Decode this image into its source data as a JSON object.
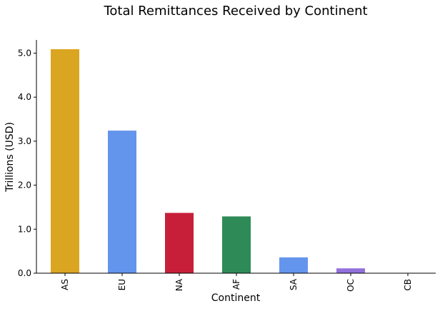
{
  "chart_data": {
    "type": "bar",
    "title": "Total Remittances Received by Continent",
    "xlabel": "Continent",
    "ylabel": "Trillions (USD)",
    "categories": [
      "AS",
      "EU",
      "NA",
      "AF",
      "SA",
      "OC",
      "CB"
    ],
    "values": [
      5.09,
      3.24,
      1.37,
      1.29,
      0.36,
      0.11,
      0.0
    ],
    "colors": [
      "#DAA520",
      "#6495ED",
      "#C71F3A",
      "#2E8B57",
      "#6495ED",
      "#9370DB",
      "#6495ED"
    ],
    "ylim": [
      0,
      5.3
    ],
    "yticks": [
      0.0,
      1.0,
      2.0,
      3.0,
      4.0,
      5.0
    ],
    "ytick_labels": [
      "0.0",
      "1.0",
      "2.0",
      "3.0",
      "4.0",
      "5.0"
    ],
    "grid": false,
    "legend": false
  }
}
